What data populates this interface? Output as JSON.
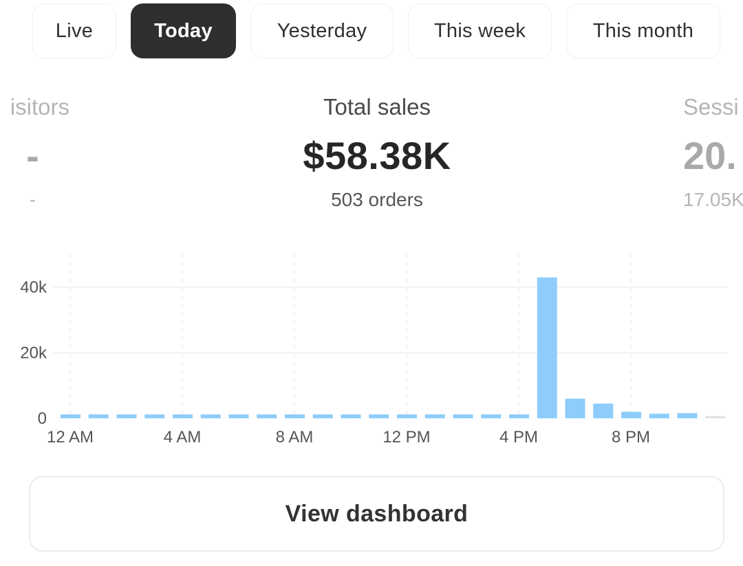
{
  "tabs": [
    {
      "label": "Live",
      "active": false
    },
    {
      "label": "Today",
      "active": true
    },
    {
      "label": "Yesterday",
      "active": false
    },
    {
      "label": "This week",
      "active": false
    },
    {
      "label": "This month",
      "active": false
    }
  ],
  "metrics": {
    "left": {
      "label": "isitors",
      "value": "-",
      "sub": "-"
    },
    "center": {
      "label": "Total sales",
      "value": "$58.38K",
      "sub": "503 orders"
    },
    "right": {
      "label": "Sessi",
      "value": "20.",
      "sub": "17.05K"
    }
  },
  "chart_data": {
    "type": "bar",
    "x_tick_labels": [
      "12 AM",
      "4 AM",
      "8 AM",
      "12 PM",
      "4 PM",
      "8 PM"
    ],
    "y_tick_labels": [
      "0",
      "20k",
      "40k"
    ],
    "ylim": [
      0,
      48000
    ],
    "grid": true,
    "bar_color": "#8ecdfb",
    "pending_bar_color": "#e2e2e2",
    "hours": [
      "12 AM",
      "1 AM",
      "2 AM",
      "3 AM",
      "4 AM",
      "5 AM",
      "6 AM",
      "7 AM",
      "8 AM",
      "9 AM",
      "10 AM",
      "11 AM",
      "12 PM",
      "1 PM",
      "2 PM",
      "3 PM",
      "4 PM",
      "5 PM",
      "6 PM",
      "7 PM",
      "8 PM",
      "9 PM",
      "10 PM",
      "11 PM"
    ],
    "values": [
      1200,
      1200,
      1200,
      1200,
      1200,
      1200,
      1200,
      1200,
      1200,
      1200,
      1200,
      1200,
      1200,
      1200,
      1200,
      1200,
      1200,
      43000,
      6000,
      4500,
      2000,
      1400,
      1600,
      700
    ],
    "pending": [
      false,
      false,
      false,
      false,
      false,
      false,
      false,
      false,
      false,
      false,
      false,
      false,
      false,
      false,
      false,
      false,
      false,
      false,
      false,
      false,
      false,
      false,
      false,
      true
    ]
  },
  "cta": {
    "label": "View dashboard"
  }
}
